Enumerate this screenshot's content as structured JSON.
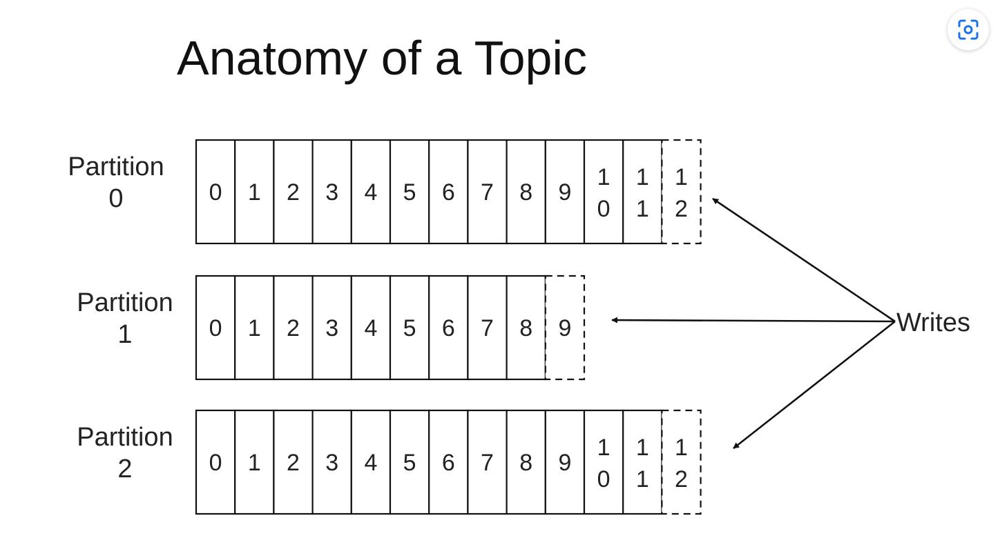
{
  "title": "Anatomy of a Topic",
  "partitions": [
    {
      "label": [
        "Partition",
        "0"
      ],
      "offsets": [
        "0",
        "1",
        "2",
        "3",
        "4",
        "5",
        "6",
        "7",
        "8",
        "9",
        "10",
        "11"
      ],
      "next_offset": "12"
    },
    {
      "label": [
        "Partition",
        "1"
      ],
      "offsets": [
        "0",
        "1",
        "2",
        "3",
        "4",
        "5",
        "6",
        "7",
        "8"
      ],
      "next_offset": "9"
    },
    {
      "label": [
        "Partition",
        "2"
      ],
      "offsets": [
        "0",
        "1",
        "2",
        "3",
        "4",
        "5",
        "6",
        "7",
        "8",
        "9",
        "10",
        "11"
      ],
      "next_offset": "12"
    }
  ],
  "writes_label": "Writes",
  "icons": {
    "lens": "visual-search-icon"
  },
  "colors": {
    "ink": "#111111",
    "accent": "#1a73e8"
  }
}
